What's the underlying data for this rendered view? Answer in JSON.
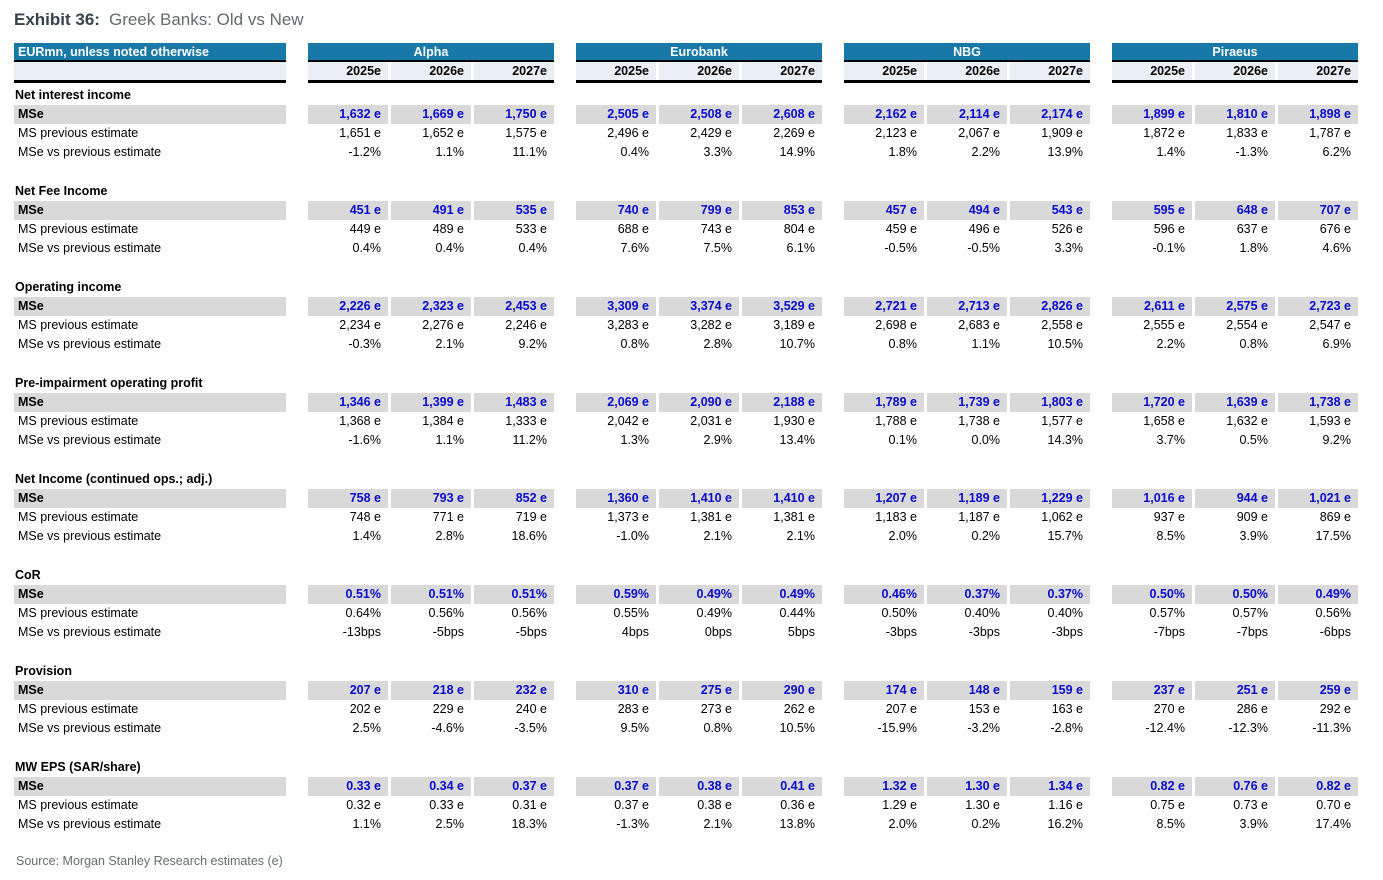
{
  "page": {
    "exhibit_label": "Exhibit 36:",
    "title": "Greek Banks: Old vs New",
    "source": "Source: Morgan Stanley Research estimates (e)"
  },
  "colors": {
    "header_blue": "#1878a8",
    "band_gray": "#d9d9d9",
    "value_blue": "#0a0acc",
    "year_row_bg": "#e9eff5"
  },
  "table": {
    "corner_header": "EURmn, unless noted otherwise",
    "banks": [
      "Alpha",
      "Eurobank",
      "NBG",
      "Piraeus"
    ],
    "years": [
      "2025e",
      "2026e",
      "2027e"
    ],
    "row_labels": {
      "mse": "MSe",
      "prev": "MS previous estimate",
      "vs": "MSe vs previous estimate"
    },
    "sections": [
      {
        "label": "Net interest income",
        "mse": [
          [
            "1,632 e",
            "1,669 e",
            "1,750 e"
          ],
          [
            "2,505 e",
            "2,508 e",
            "2,608 e"
          ],
          [
            "2,162 e",
            "2,114 e",
            "2,174 e"
          ],
          [
            "1,899 e",
            "1,810 e",
            "1,898 e"
          ]
        ],
        "prev": [
          [
            "1,651 e",
            "1,652 e",
            "1,575 e"
          ],
          [
            "2,496 e",
            "2,429 e",
            "2,269 e"
          ],
          [
            "2,123 e",
            "2,067 e",
            "1,909 e"
          ],
          [
            "1,872 e",
            "1,833 e",
            "1,787 e"
          ]
        ],
        "vs": [
          [
            "-1.2%",
            "1.1%",
            "11.1%"
          ],
          [
            "0.4%",
            "3.3%",
            "14.9%"
          ],
          [
            "1.8%",
            "2.2%",
            "13.9%"
          ],
          [
            "1.4%",
            "-1.3%",
            "6.2%"
          ]
        ]
      },
      {
        "label": "Net Fee Income",
        "mse": [
          [
            "451 e",
            "491 e",
            "535 e"
          ],
          [
            "740 e",
            "799 e",
            "853 e"
          ],
          [
            "457 e",
            "494 e",
            "543 e"
          ],
          [
            "595 e",
            "648 e",
            "707 e"
          ]
        ],
        "prev": [
          [
            "449 e",
            "489 e",
            "533 e"
          ],
          [
            "688 e",
            "743 e",
            "804 e"
          ],
          [
            "459 e",
            "496 e",
            "526 e"
          ],
          [
            "596 e",
            "637 e",
            "676 e"
          ]
        ],
        "vs": [
          [
            "0.4%",
            "0.4%",
            "0.4%"
          ],
          [
            "7.6%",
            "7.5%",
            "6.1%"
          ],
          [
            "-0.5%",
            "-0.5%",
            "3.3%"
          ],
          [
            "-0.1%",
            "1.8%",
            "4.6%"
          ]
        ]
      },
      {
        "label": "Operating income",
        "mse": [
          [
            "2,226 e",
            "2,323 e",
            "2,453 e"
          ],
          [
            "3,309 e",
            "3,374 e",
            "3,529 e"
          ],
          [
            "2,721 e",
            "2,713 e",
            "2,826 e"
          ],
          [
            "2,611 e",
            "2,575 e",
            "2,723 e"
          ]
        ],
        "prev": [
          [
            "2,234 e",
            "2,276 e",
            "2,246 e"
          ],
          [
            "3,283 e",
            "3,282 e",
            "3,189 e"
          ],
          [
            "2,698 e",
            "2,683 e",
            "2,558 e"
          ],
          [
            "2,555 e",
            "2,554 e",
            "2,547 e"
          ]
        ],
        "vs": [
          [
            "-0.3%",
            "2.1%",
            "9.2%"
          ],
          [
            "0.8%",
            "2.8%",
            "10.7%"
          ],
          [
            "0.8%",
            "1.1%",
            "10.5%"
          ],
          [
            "2.2%",
            "0.8%",
            "6.9%"
          ]
        ]
      },
      {
        "label": "Pre-impairment operating profit",
        "mse": [
          [
            "1,346 e",
            "1,399 e",
            "1,483 e"
          ],
          [
            "2,069 e",
            "2,090 e",
            "2,188 e"
          ],
          [
            "1,789 e",
            "1,739 e",
            "1,803 e"
          ],
          [
            "1,720 e",
            "1,639 e",
            "1,738 e"
          ]
        ],
        "prev": [
          [
            "1,368 e",
            "1,384 e",
            "1,333 e"
          ],
          [
            "2,042 e",
            "2,031 e",
            "1,930 e"
          ],
          [
            "1,788 e",
            "1,738 e",
            "1,577 e"
          ],
          [
            "1,658 e",
            "1,632 e",
            "1,593 e"
          ]
        ],
        "vs": [
          [
            "-1.6%",
            "1.1%",
            "11.2%"
          ],
          [
            "1.3%",
            "2.9%",
            "13.4%"
          ],
          [
            "0.1%",
            "0.0%",
            "14.3%"
          ],
          [
            "3.7%",
            "0.5%",
            "9.2%"
          ]
        ]
      },
      {
        "label": "Net Income (continued ops.; adj.)",
        "mse": [
          [
            "758 e",
            "793 e",
            "852 e"
          ],
          [
            "1,360 e",
            "1,410 e",
            "1,410 e"
          ],
          [
            "1,207 e",
            "1,189 e",
            "1,229 e"
          ],
          [
            "1,016 e",
            "944 e",
            "1,021 e"
          ]
        ],
        "prev": [
          [
            "748 e",
            "771 e",
            "719 e"
          ],
          [
            "1,373 e",
            "1,381 e",
            "1,381 e"
          ],
          [
            "1,183 e",
            "1,187 e",
            "1,062 e"
          ],
          [
            "937 e",
            "909 e",
            "869 e"
          ]
        ],
        "vs": [
          [
            "1.4%",
            "2.8%",
            "18.6%"
          ],
          [
            "-1.0%",
            "2.1%",
            "2.1%"
          ],
          [
            "2.0%",
            "0.2%",
            "15.7%"
          ],
          [
            "8.5%",
            "3.9%",
            "17.5%"
          ]
        ]
      },
      {
        "label": "CoR",
        "mse": [
          [
            "0.51%",
            "0.51%",
            "0.51%"
          ],
          [
            "0.59%",
            "0.49%",
            "0.49%"
          ],
          [
            "0.46%",
            "0.37%",
            "0.37%"
          ],
          [
            "0.50%",
            "0.50%",
            "0.49%"
          ]
        ],
        "prev": [
          [
            "0.64%",
            "0.56%",
            "0.56%"
          ],
          [
            "0.55%",
            "0.49%",
            "0.44%"
          ],
          [
            "0.50%",
            "0.40%",
            "0.40%"
          ],
          [
            "0.57%",
            "0.57%",
            "0.56%"
          ]
        ],
        "vs": [
          [
            "-13bps",
            "-5bps",
            "-5bps"
          ],
          [
            "4bps",
            "0bps",
            "5bps"
          ],
          [
            "-3bps",
            "-3bps",
            "-3bps"
          ],
          [
            "-7bps",
            "-7bps",
            "-6bps"
          ]
        ]
      },
      {
        "label": "Provision",
        "mse": [
          [
            "207 e",
            "218 e",
            "232 e"
          ],
          [
            "310 e",
            "275 e",
            "290 e"
          ],
          [
            "174 e",
            "148 e",
            "159 e"
          ],
          [
            "237 e",
            "251 e",
            "259 e"
          ]
        ],
        "prev": [
          [
            "202 e",
            "229 e",
            "240 e"
          ],
          [
            "283 e",
            "273 e",
            "262 e"
          ],
          [
            "207 e",
            "153 e",
            "163 e"
          ],
          [
            "270 e",
            "286 e",
            "292 e"
          ]
        ],
        "vs": [
          [
            "2.5%",
            "-4.6%",
            "-3.5%"
          ],
          [
            "9.5%",
            "0.8%",
            "10.5%"
          ],
          [
            "-15.9%",
            "-3.2%",
            "-2.8%"
          ],
          [
            "-12.4%",
            "-12.3%",
            "-11.3%"
          ]
        ]
      },
      {
        "label": "MW EPS (SAR/share)",
        "mse": [
          [
            "0.33 e",
            "0.34 e",
            "0.37 e"
          ],
          [
            "0.37 e",
            "0.38 e",
            "0.41 e"
          ],
          [
            "1.32 e",
            "1.30 e",
            "1.34 e"
          ],
          [
            "0.82 e",
            "0.76 e",
            "0.82 e"
          ]
        ],
        "prev": [
          [
            "0.32 e",
            "0.33 e",
            "0.31 e"
          ],
          [
            "0.37 e",
            "0.38 e",
            "0.36 e"
          ],
          [
            "1.29 e",
            "1.30 e",
            "1.16 e"
          ],
          [
            "0.75 e",
            "0.73 e",
            "0.70 e"
          ]
        ],
        "vs": [
          [
            "1.1%",
            "2.5%",
            "18.3%"
          ],
          [
            "-1.3%",
            "2.1%",
            "13.8%"
          ],
          [
            "2.0%",
            "0.2%",
            "16.2%"
          ],
          [
            "8.5%",
            "3.9%",
            "17.4%"
          ]
        ]
      }
    ]
  }
}
